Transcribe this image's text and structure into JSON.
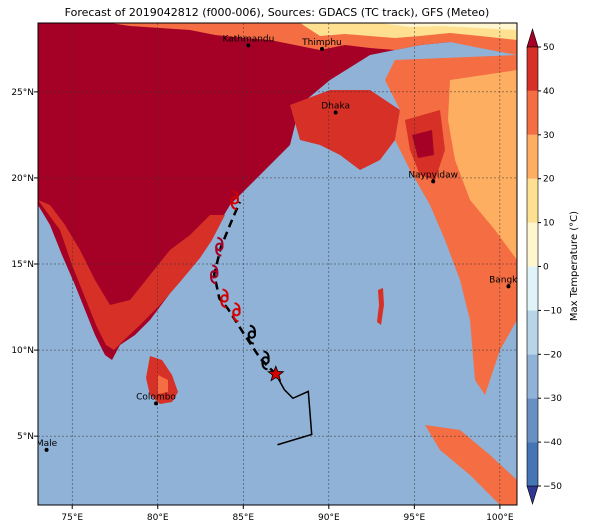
{
  "title": "Forecast of 2019042812 (f000-006), Sources: GDACS (TC track), GFS (Meteo)",
  "axes": {
    "x_ticks": [
      "75°E",
      "80°E",
      "85°E",
      "90°E",
      "95°E",
      "100°E"
    ],
    "x_tick_values": [
      75,
      80,
      85,
      90,
      95,
      100
    ],
    "y_ticks": [
      "5°N",
      "10°N",
      "15°N",
      "20°N",
      "25°N"
    ],
    "y_tick_values": [
      5,
      10,
      15,
      20,
      25
    ],
    "lon_range": [
      73,
      101
    ],
    "lat_range": [
      1,
      29
    ]
  },
  "colorbar": {
    "label": "Max Temperature (°C)",
    "ticks": [
      "50",
      "40",
      "30",
      "20",
      "10",
      "0",
      "−10",
      "−20",
      "−30",
      "−40",
      "−50"
    ],
    "tick_values": [
      50,
      40,
      30,
      20,
      10,
      0,
      -10,
      -20,
      -30,
      -40,
      -50
    ],
    "colors": [
      "#313695",
      "#4575b4",
      "#6990c2",
      "#90b2d6",
      "#b8d4e8",
      "#e0f3f8",
      "#fff6d0",
      "#fee090",
      "#fdae61",
      "#f46d43",
      "#d73027",
      "#a50026"
    ]
  },
  "cities": [
    {
      "name": "Kathmandu",
      "lon": 85.3,
      "lat": 27.7
    },
    {
      "name": "Thimphu",
      "lon": 89.6,
      "lat": 27.5
    },
    {
      "name": "Dhaka",
      "lon": 90.4,
      "lat": 23.8
    },
    {
      "name": "Naypyidaw",
      "lon": 96.1,
      "lat": 19.8
    },
    {
      "name": "Bangkok",
      "lon": 100.5,
      "lat": 13.7
    },
    {
      "name": "Colombo",
      "lon": 79.9,
      "lat": 6.9
    },
    {
      "name": "Male",
      "lon": 73.5,
      "lat": 4.2
    }
  ],
  "track": {
    "observed": [
      [
        87.0,
        4.5
      ],
      [
        89.0,
        5.1
      ],
      [
        88.8,
        7.6
      ],
      [
        87.9,
        7.2
      ],
      [
        87.4,
        7.7
      ],
      [
        86.9,
        8.6
      ]
    ],
    "forecast": [
      [
        86.9,
        8.6
      ],
      [
        86.0,
        9.5
      ],
      [
        85.0,
        11.0
      ],
      [
        84.1,
        12.4
      ],
      [
        83.6,
        13.0
      ],
      [
        83.3,
        14.4
      ],
      [
        83.7,
        16.0
      ],
      [
        84.4,
        17.7
      ],
      [
        84.8,
        18.6
      ]
    ],
    "current_position": [
      86.9,
      8.6
    ],
    "storm_symbols": [
      {
        "lon": 86.3,
        "lat": 9.4,
        "color": "#000000"
      },
      {
        "lon": 85.5,
        "lat": 10.9,
        "color": "#000000"
      },
      {
        "lon": 84.6,
        "lat": 12.2,
        "color": "#d40000"
      },
      {
        "lon": 83.9,
        "lat": 13.0,
        "color": "#d40000"
      },
      {
        "lon": 83.3,
        "lat": 14.4,
        "color": "#a50026"
      },
      {
        "lon": 83.6,
        "lat": 16.0,
        "color": "#a50026"
      },
      {
        "lon": 84.5,
        "lat": 18.7,
        "color": "#d40000"
      }
    ]
  }
}
